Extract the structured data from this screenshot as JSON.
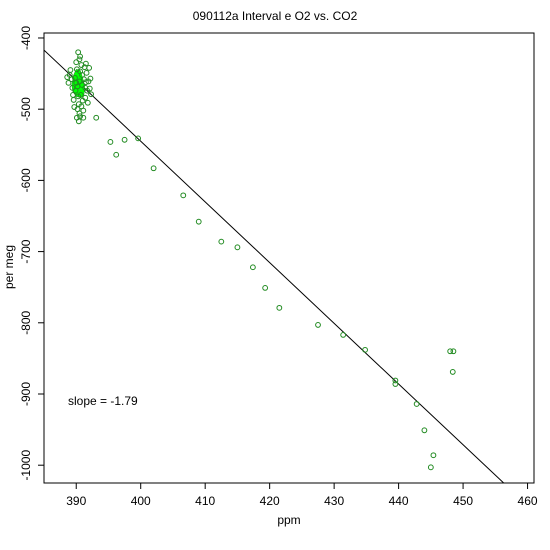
{
  "chart_data": {
    "type": "scatter",
    "title": "090112a   Interval e O2 vs. CO2",
    "xlabel": "ppm",
    "ylabel": "per meg",
    "xlim": [
      385,
      461
    ],
    "ylim": [
      -1025,
      -393
    ],
    "xticks": [
      390,
      400,
      410,
      420,
      430,
      440,
      450,
      460
    ],
    "yticks": [
      -1000,
      -900,
      -800,
      -700,
      -600,
      -500,
      -400
    ],
    "grid": false,
    "point_color": "#228B22",
    "cluster_fill_color": "#00FF00",
    "annotation": "slope =  -1.79",
    "fit_line": {
      "slope": -1.79,
      "points": [
        [
          385,
          -417
        ],
        [
          456.3,
          -1025
        ]
      ]
    },
    "points": [
      [
        389.4,
        -470
      ],
      [
        389.9,
        -474
      ],
      [
        390.2,
        -468
      ],
      [
        390.5,
        -461
      ],
      [
        390.7,
        -480
      ],
      [
        390.3,
        -482
      ],
      [
        389.8,
        -456
      ],
      [
        390.1,
        -444
      ],
      [
        390.6,
        -447
      ],
      [
        390.9,
        -452
      ],
      [
        391.2,
        -458
      ],
      [
        391.4,
        -470
      ],
      [
        391.0,
        -488
      ],
      [
        390.4,
        -493
      ],
      [
        389.6,
        -487
      ],
      [
        389.3,
        -458
      ],
      [
        390.0,
        -434
      ],
      [
        390.5,
        -430
      ],
      [
        390.8,
        -438
      ],
      [
        391.3,
        -441
      ],
      [
        391.6,
        -449
      ],
      [
        391.9,
        -461
      ],
      [
        391.7,
        -474
      ],
      [
        391.4,
        -484
      ],
      [
        390.8,
        -496
      ],
      [
        390.2,
        -500
      ],
      [
        389.7,
        -497
      ],
      [
        389.5,
        -480
      ],
      [
        388.8,
        -463
      ],
      [
        389.1,
        -445
      ],
      [
        390.3,
        -420
      ],
      [
        390.6,
        -426
      ],
      [
        391.5,
        -436
      ],
      [
        392.0,
        -442
      ],
      [
        392.2,
        -457
      ],
      [
        392.1,
        -471
      ],
      [
        392.3,
        -479
      ],
      [
        391.8,
        -491
      ],
      [
        391.1,
        -502
      ],
      [
        390.5,
        -506
      ],
      [
        390.1,
        -512
      ],
      [
        390.4,
        -517
      ],
      [
        390.6,
        -510
      ],
      [
        391.1,
        -512
      ],
      [
        393.1,
        -512
      ],
      [
        389.0,
        -452
      ],
      [
        388.6,
        -455
      ],
      [
        390.0,
        -463
      ],
      [
        390.9,
        -466
      ],
      [
        391.5,
        -462
      ],
      [
        395.3,
        -546
      ],
      [
        396.2,
        -564
      ],
      [
        397.5,
        -543
      ],
      [
        399.6,
        -541
      ],
      [
        402.0,
        -583
      ],
      [
        406.6,
        -621
      ],
      [
        409.0,
        -658
      ],
      [
        412.5,
        -686
      ],
      [
        415.0,
        -694
      ],
      [
        417.4,
        -722
      ],
      [
        419.3,
        -751
      ],
      [
        421.5,
        -779
      ],
      [
        427.5,
        -803
      ],
      [
        431.4,
        -817
      ],
      [
        434.8,
        -838
      ],
      [
        439.5,
        -881
      ],
      [
        439.5,
        -886
      ],
      [
        442.8,
        -914
      ],
      [
        444.0,
        -951
      ],
      [
        445.4,
        -986
      ],
      [
        445.0,
        -1003
      ],
      [
        448.0,
        -840
      ],
      [
        448.5,
        -840
      ],
      [
        448.4,
        -869
      ]
    ],
    "cluster": [
      [
        389.3,
        -466
      ],
      [
        389.6,
        -452
      ],
      [
        390.0,
        -444
      ],
      [
        390.6,
        -445
      ],
      [
        391.0,
        -456
      ],
      [
        391.3,
        -468
      ],
      [
        391.2,
        -480
      ],
      [
        390.7,
        -484
      ],
      [
        390.0,
        -482
      ],
      [
        389.5,
        -476
      ]
    ]
  }
}
